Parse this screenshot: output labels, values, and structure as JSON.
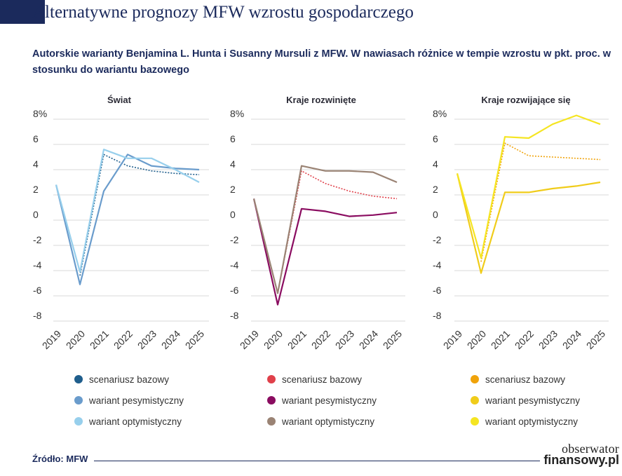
{
  "page": {
    "title": "Alternatywne prognozy MFW wzrostu gospodarczego",
    "subtitle": "Autorskie warianty Benjamina L. Hunta i Susanny Mursuli z MFW. W nawiasach różnice w tempie wzrostu w pkt. proc. w stosunku do wariantu bazowego",
    "source": "Źródło: MFW",
    "brand_line1": "obserwator",
    "brand_line2": "finansowy.pl"
  },
  "chart_data": [
    {
      "type": "line",
      "title": "Świat",
      "x": [
        "2019",
        "2020",
        "2021",
        "2022",
        "2023",
        "2024",
        "2025"
      ],
      "ylim": [
        -8,
        8
      ],
      "yticks": [
        "8%",
        "6",
        "4",
        "2",
        "0",
        "-2",
        "-4",
        "-6",
        "-8"
      ],
      "grid": true,
      "legend_position": "bottom",
      "series": [
        {
          "name": "scenariusz bazowy",
          "color": "#1f5e8c",
          "dashed": true,
          "values": [
            null,
            -4.4,
            5.2,
            4.3,
            3.9,
            3.7,
            3.6
          ]
        },
        {
          "name": "wariant pesymistyczny",
          "color": "#6a9ccc",
          "dashed": false,
          "values": [
            2.8,
            -5.1,
            2.3,
            5.2,
            4.3,
            4.1,
            4.0
          ]
        },
        {
          "name": "wariant optymistyczny",
          "color": "#97cfec",
          "dashed": false,
          "values": [
            2.8,
            -4.1,
            5.6,
            4.9,
            4.9,
            4.0,
            3.0
          ]
        }
      ]
    },
    {
      "type": "line",
      "title": "Kraje rozwinięte",
      "x": [
        "2019",
        "2020",
        "2021",
        "2022",
        "2023",
        "2024",
        "2025"
      ],
      "ylim": [
        -8,
        8
      ],
      "yticks": [
        "8%",
        "6",
        "4",
        "2",
        "0",
        "-2",
        "-4",
        "-6",
        "-8"
      ],
      "grid": true,
      "legend_position": "bottom",
      "series": [
        {
          "name": "scenariusz bazowy",
          "color": "#e0404a",
          "dashed": true,
          "values": [
            null,
            -5.8,
            3.9,
            2.9,
            2.3,
            1.9,
            1.7
          ]
        },
        {
          "name": "wariant pesymistyczny",
          "color": "#8a0c60",
          "dashed": false,
          "values": [
            1.7,
            -6.7,
            0.9,
            0.7,
            0.3,
            0.4,
            0.6
          ]
        },
        {
          "name": "wariant optymistyczny",
          "color": "#9a8374",
          "dashed": false,
          "values": [
            1.7,
            -5.8,
            4.3,
            3.9,
            3.9,
            3.8,
            3.0
          ]
        }
      ]
    },
    {
      "type": "line",
      "title": "Kraje rozwijające się",
      "x": [
        "2019",
        "2020",
        "2021",
        "2022",
        "2023",
        "2024",
        "2025"
      ],
      "ylim": [
        -8,
        8
      ],
      "yticks": [
        "8%",
        "6",
        "4",
        "2",
        "0",
        "-2",
        "-4",
        "-6",
        "-8"
      ],
      "grid": true,
      "legend_position": "bottom",
      "series": [
        {
          "name": "scenariusz bazowy",
          "color": "#f0a30a",
          "dashed": true,
          "values": [
            null,
            -3.3,
            6.1,
            5.1,
            5.0,
            4.9,
            4.8
          ]
        },
        {
          "name": "wariant pesymistyczny",
          "color": "#f0cc1a",
          "dashed": false,
          "values": [
            3.7,
            -4.2,
            2.2,
            2.2,
            2.5,
            2.7,
            3.0
          ]
        },
        {
          "name": "wariant optymistyczny",
          "color": "#f5e522",
          "dashed": false,
          "values": [
            3.7,
            -3.0,
            6.6,
            6.5,
            7.6,
            8.3,
            7.6
          ]
        }
      ]
    }
  ]
}
